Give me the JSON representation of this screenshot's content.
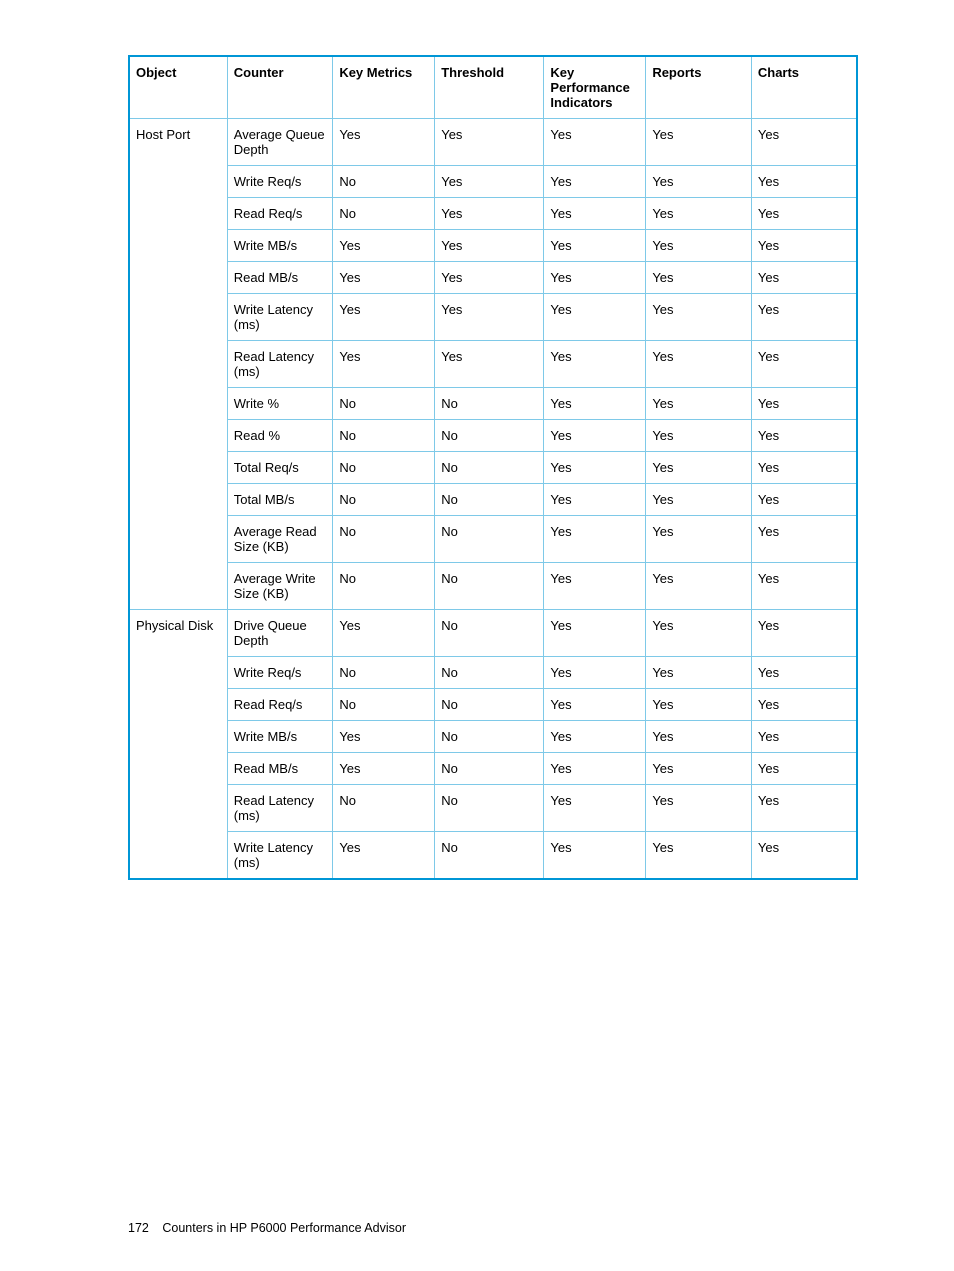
{
  "colors": {
    "outer_border": "#0096d6",
    "inner_border": "#7ec9e8",
    "text": "#000000",
    "bg": "#ffffff"
  },
  "column_widths_pct": [
    13.5,
    14.5,
    14,
    15,
    14,
    14.5,
    14.5
  ],
  "table": {
    "headers": [
      "Object",
      "Counter",
      "Key Metrics",
      "Threshold",
      "Key Performance Indicators",
      "Reports",
      "Charts"
    ],
    "rows": [
      [
        "Host Port",
        "Average Queue Depth",
        "Yes",
        "Yes",
        "Yes",
        "Yes",
        "Yes"
      ],
      [
        "",
        "Write Req/s",
        "No",
        "Yes",
        "Yes",
        "Yes",
        "Yes"
      ],
      [
        "",
        "Read Req/s",
        "No",
        "Yes",
        "Yes",
        "Yes",
        "Yes"
      ],
      [
        "",
        "Write MB/s",
        "Yes",
        "Yes",
        "Yes",
        "Yes",
        "Yes"
      ],
      [
        "",
        "Read MB/s",
        "Yes",
        "Yes",
        "Yes",
        "Yes",
        "Yes"
      ],
      [
        "",
        "Write Latency (ms)",
        "Yes",
        "Yes",
        "Yes",
        "Yes",
        "Yes"
      ],
      [
        "",
        "Read Latency (ms)",
        "Yes",
        "Yes",
        "Yes",
        "Yes",
        "Yes"
      ],
      [
        "",
        "Write %",
        "No",
        "No",
        "Yes",
        "Yes",
        "Yes"
      ],
      [
        "",
        "Read %",
        "No",
        "No",
        "Yes",
        "Yes",
        "Yes"
      ],
      [
        "",
        "Total Req/s",
        "No",
        "No",
        "Yes",
        "Yes",
        "Yes"
      ],
      [
        "",
        "Total MB/s",
        "No",
        "No",
        "Yes",
        "Yes",
        "Yes"
      ],
      [
        "",
        "Average Read Size (KB)",
        "No",
        "No",
        "Yes",
        "Yes",
        "Yes"
      ],
      [
        "",
        "Average Write Size (KB)",
        "No",
        "No",
        "Yes",
        "Yes",
        "Yes"
      ],
      [
        "Physical Disk",
        "Drive Queue Depth",
        "Yes",
        "No",
        "Yes",
        "Yes",
        "Yes"
      ],
      [
        "",
        "Write Req/s",
        "No",
        "No",
        "Yes",
        "Yes",
        "Yes"
      ],
      [
        "",
        "Read Req/s",
        "No",
        "No",
        "Yes",
        "Yes",
        "Yes"
      ],
      [
        "",
        "Write MB/s",
        "Yes",
        "No",
        "Yes",
        "Yes",
        "Yes"
      ],
      [
        "",
        "Read MB/s",
        "Yes",
        "No",
        "Yes",
        "Yes",
        "Yes"
      ],
      [
        "",
        "Read Latency (ms)",
        "No",
        "No",
        "Yes",
        "Yes",
        "Yes"
      ],
      [
        "",
        "Write Latency (ms)",
        "Yes",
        "No",
        "Yes",
        "Yes",
        "Yes"
      ]
    ],
    "group_starts": [
      0,
      13
    ]
  },
  "footer": {
    "page_number": "172",
    "title": "Counters in HP P6000 Performance Advisor"
  }
}
